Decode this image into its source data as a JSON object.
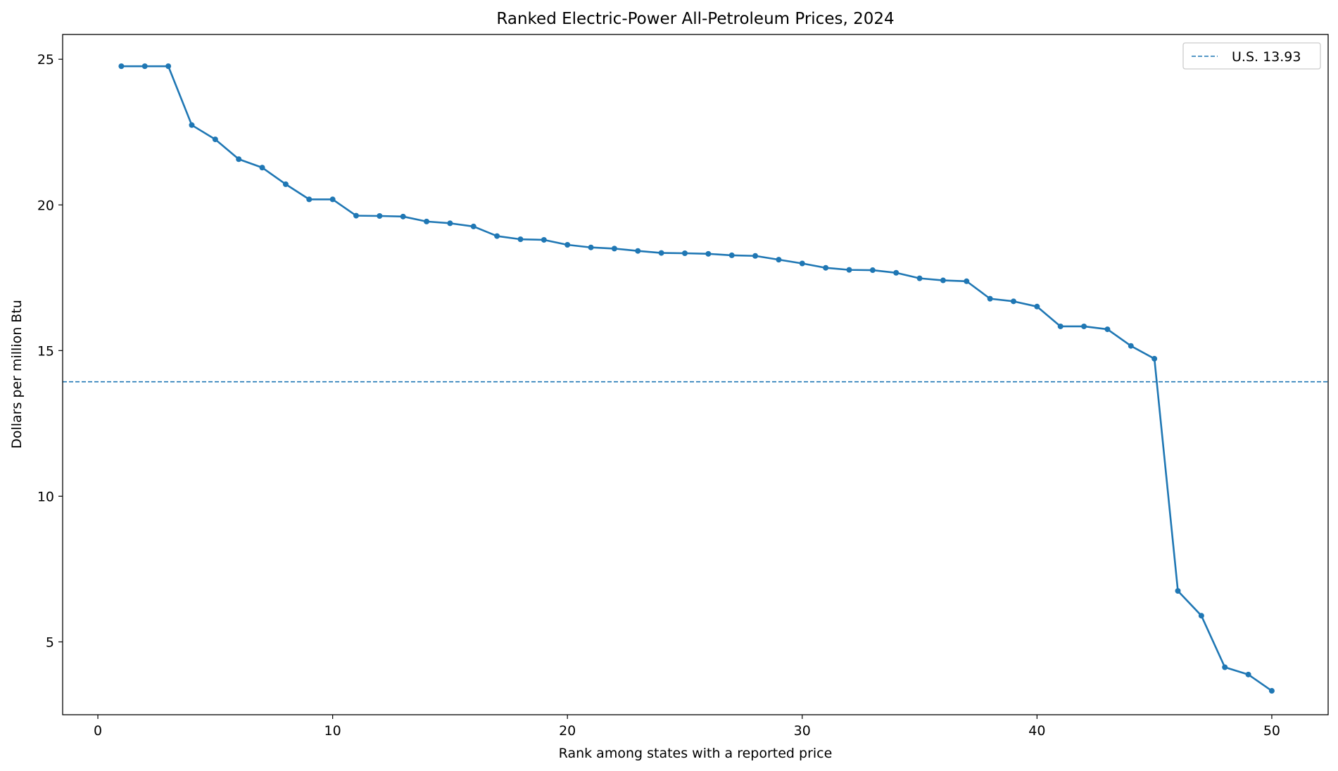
{
  "chart_data": {
    "type": "line",
    "title": "Ranked Electric-Power All-Petroleum Prices, 2024",
    "xlabel": "Rank among states with a reported price",
    "ylabel": "Dollars per million Btu",
    "xlim": [
      -1.5,
      52.4
    ],
    "ylim": [
      2.5,
      25.85
    ],
    "xticks": [
      0,
      10,
      20,
      30,
      40,
      50
    ],
    "yticks": [
      5,
      10,
      15,
      20,
      25
    ],
    "grid": false,
    "legend_position": "upper right",
    "series": [
      {
        "x": [
          1,
          2,
          3,
          4,
          5,
          6,
          7,
          8,
          9,
          10,
          11,
          12,
          13,
          14,
          15,
          16,
          17,
          18,
          19,
          20,
          21,
          22,
          23,
          24,
          25,
          26,
          27,
          28,
          29,
          30,
          31,
          32,
          33,
          34,
          35,
          36,
          37,
          38,
          39,
          40,
          41,
          42,
          43,
          44,
          45,
          46,
          47,
          48,
          49,
          50
        ],
        "y": [
          24.76,
          24.76,
          24.76,
          22.74,
          22.25,
          21.57,
          21.28,
          20.71,
          20.19,
          20.19,
          19.63,
          19.62,
          19.6,
          19.43,
          19.37,
          19.26,
          18.93,
          18.82,
          18.8,
          18.63,
          18.54,
          18.5,
          18.42,
          18.35,
          18.34,
          18.32,
          18.27,
          18.25,
          18.12,
          17.99,
          17.84,
          17.77,
          17.76,
          17.67,
          17.48,
          17.41,
          17.38,
          16.78,
          16.69,
          16.51,
          15.83,
          15.83,
          15.73,
          15.16,
          14.72,
          6.75,
          5.9,
          4.13,
          3.88,
          3.32
        ],
        "color": "#1f77b4"
      }
    ],
    "reference_lines": [
      {
        "name": "U.S. 13.93",
        "y": 13.93,
        "style": "dashed",
        "color": "#1f77b4"
      }
    ]
  }
}
